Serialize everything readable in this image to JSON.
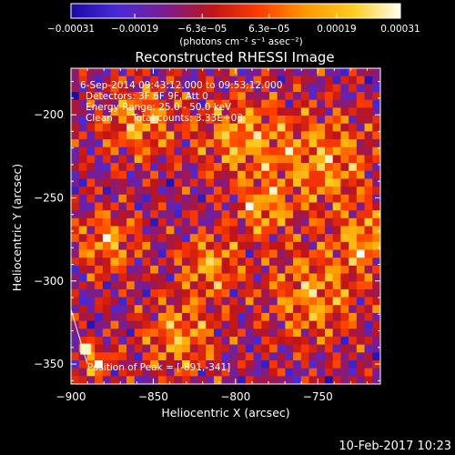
{
  "chart_data": {
    "type": "heatmap",
    "title": "Reconstructed RHESSI Image",
    "xlabel": "Heliocentric X (arcsec)",
    "ylabel": "Heliocentric Y (arcsec)",
    "xlim": [
      -900,
      -712
    ],
    "ylim": [
      -362,
      -172
    ],
    "x_ticks": [
      -900,
      -850,
      -800,
      -750
    ],
    "y_ticks": [
      -200,
      -250,
      -300,
      -350
    ],
    "x_tick_labels": [
      "−900",
      "−850",
      "−800",
      "−750"
    ],
    "y_tick_labels": [
      "−200",
      "−250",
      "−300",
      "−350"
    ],
    "grid": false,
    "colorbar": {
      "min": -0.00031,
      "max": 0.00031,
      "ticks": [
        -0.00031,
        -0.00019,
        -6.3e-05,
        6.3e-05,
        0.00019,
        0.00031
      ],
      "tick_labels": [
        "−0.00031",
        "−0.00019",
        "−6.3e−05",
        "6.3e−05",
        "0.00019",
        "0.00031"
      ],
      "units_text": "(photons cm⁻² s⁻¹ asec⁻²)",
      "colormap": [
        "#1a0aa8",
        "#4a2ad8",
        "#7a1c90",
        "#c01418",
        "#ff3c00",
        "#ff9900",
        "#ffcc20",
        "#fffff0"
      ]
    },
    "annotations": {
      "time_range": "6-Sep-2014 09:43:12.000 to 09:53:12.000",
      "detectors": "Detectors: 3F 6F 9F, Att 0",
      "energy": "Energy Range: 25.0 - 50.0 keV",
      "method": "Clean",
      "total_counts": "Total counts: 3.33E+03",
      "peak_label": "Position of Peak = [-891,-341]"
    },
    "peak": {
      "x": -891,
      "y": -341
    },
    "grid_size": [
      39,
      40
    ]
  },
  "footer": {
    "timestamp": "10-Feb-2017 10:23"
  }
}
